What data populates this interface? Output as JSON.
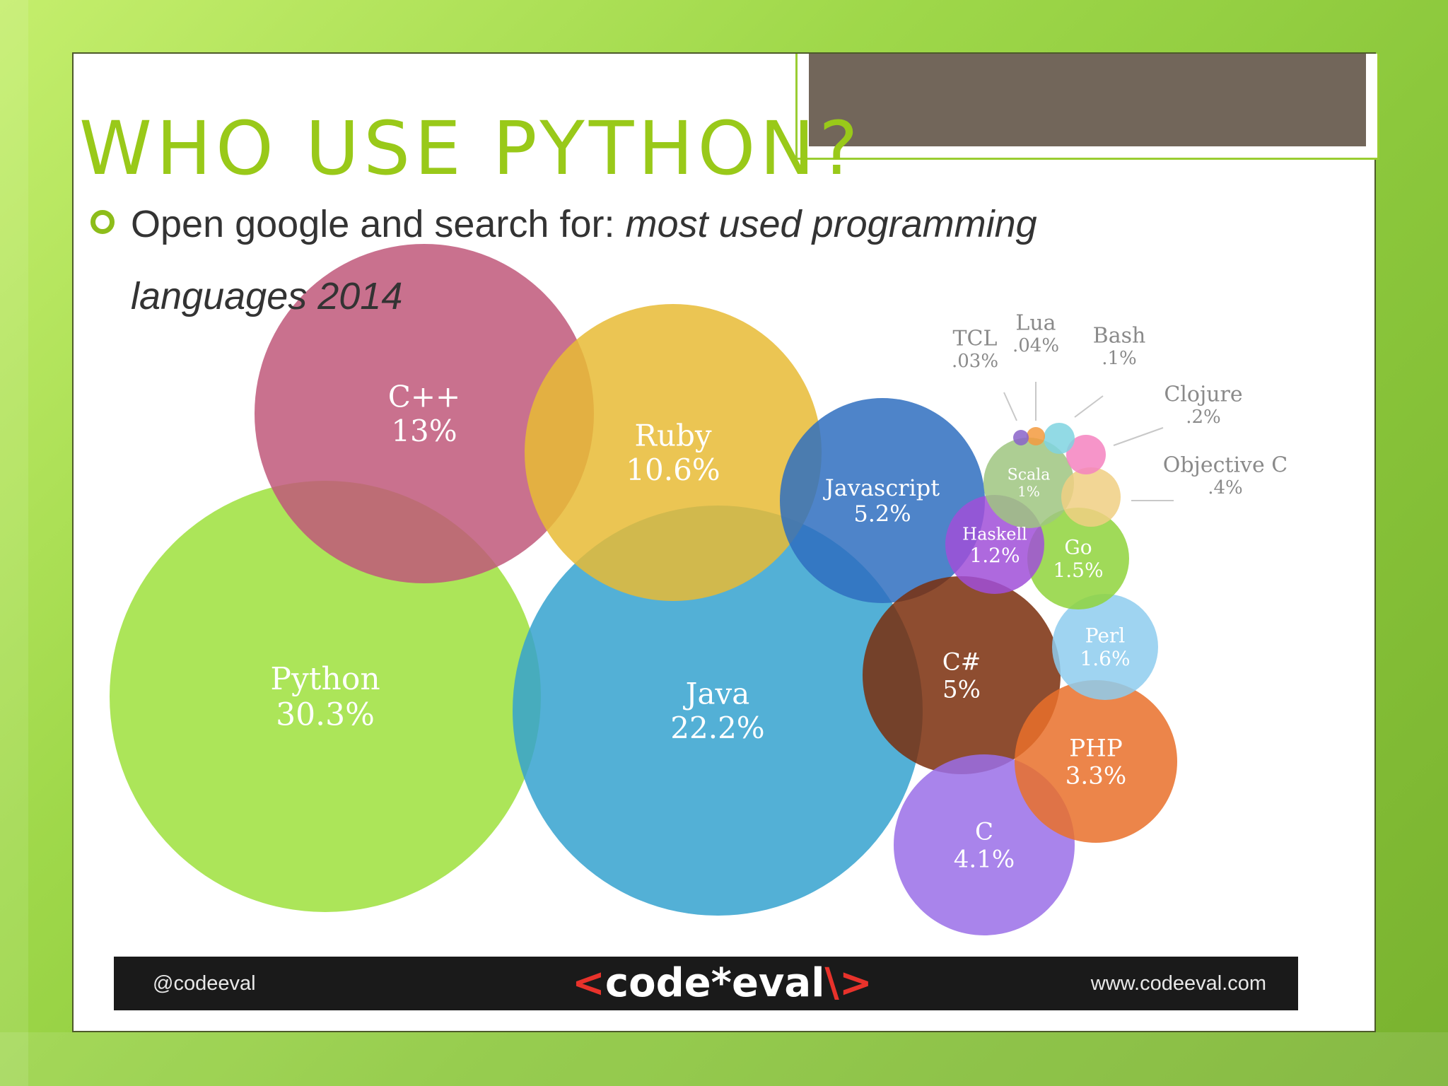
{
  "slide": {
    "title": "WHO USE PYTHON?",
    "bullet": {
      "text_plain": "Open google and search for: ",
      "text_italic": "most used programming",
      "text_line2": "languages 2014"
    }
  },
  "chart_data": {
    "type": "bubble",
    "title": "",
    "series": [
      {
        "name": "Python",
        "label": "30.3%",
        "value": 30.3,
        "color": "#9ee03c"
      },
      {
        "name": "Java",
        "label": "22.2%",
        "value": 22.2,
        "color": "#35a2cf"
      },
      {
        "name": "C++",
        "label": "13%",
        "value": 13,
        "color": "#c0587a"
      },
      {
        "name": "Ruby",
        "label": "10.6%",
        "value": 10.6,
        "color": "#e7bb35"
      },
      {
        "name": "Javascript",
        "label": "5.2%",
        "value": 5.2,
        "color": "#2f6ebf"
      },
      {
        "name": "C#",
        "label": "5%",
        "value": 5,
        "color": "#7a2e0c"
      },
      {
        "name": "C",
        "label": "4.1%",
        "value": 4.1,
        "color": "#9a6ee8"
      },
      {
        "name": "PHP",
        "label": "3.3%",
        "value": 3.3,
        "color": "#e9702a"
      },
      {
        "name": "Perl",
        "label": "1.6%",
        "value": 1.6,
        "color": "#8ecdee"
      },
      {
        "name": "Go",
        "label": "1.5%",
        "value": 1.5,
        "color": "#8fd43c"
      },
      {
        "name": "Haskell",
        "label": "1.2%",
        "value": 1.2,
        "color": "#a04fd8"
      },
      {
        "name": "Scala",
        "label": "1%",
        "value": 1,
        "color": "#9fc680"
      },
      {
        "name": "Objective C",
        "label": ".4%",
        "value": 0.4,
        "color": "#f0cf82"
      },
      {
        "name": "Clojure",
        "label": ".2%",
        "value": 0.2,
        "color": "#f582c0"
      },
      {
        "name": "Bash",
        "label": ".1%",
        "value": 0.1,
        "color": "#7fd4e0"
      },
      {
        "name": "Lua",
        "label": ".04%",
        "value": 0.04,
        "color": "#f39a3e"
      },
      {
        "name": "TCL",
        "label": ".03%",
        "value": 0.03,
        "color": "#8a63c9"
      }
    ]
  },
  "footer": {
    "handle": "@codeeval",
    "logo_open": "<",
    "logo_text": "code*eval",
    "logo_close": "\\>",
    "url": "www.codeeval.com"
  }
}
